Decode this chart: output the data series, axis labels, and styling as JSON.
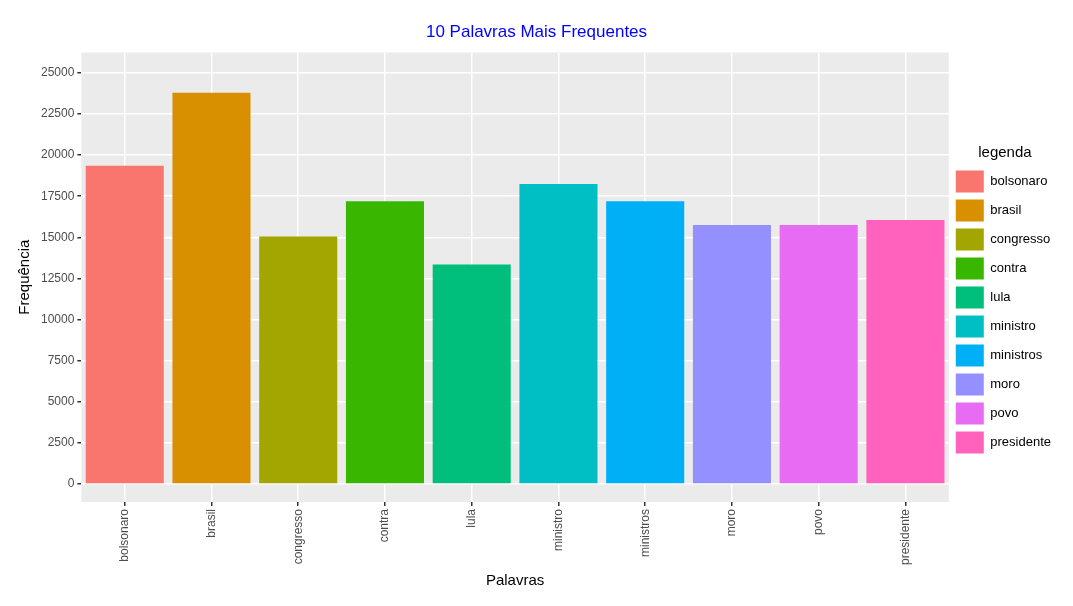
{
  "chart_data": {
    "type": "bar",
    "title": "10 Palavras Mais Frequentes",
    "xlabel": "Palavras",
    "ylabel": "Frequência",
    "legend_title": "legenda",
    "categories": [
      "bolsonaro",
      "brasil",
      "congresso",
      "contra",
      "lula",
      "ministro",
      "ministros",
      "moro",
      "povo",
      "presidente"
    ],
    "series": [
      {
        "name": "bolsonaro",
        "color": "#f8766d",
        "values": [
          19350,
          null,
          null,
          null,
          null,
          null,
          null,
          null,
          null,
          null
        ]
      },
      {
        "name": "brasil",
        "color": "#d89000",
        "values": [
          null,
          23800,
          null,
          null,
          null,
          null,
          null,
          null,
          null,
          null
        ]
      },
      {
        "name": "congresso",
        "color": "#a3a500",
        "values": [
          null,
          null,
          15050,
          null,
          null,
          null,
          null,
          null,
          null,
          null
        ]
      },
      {
        "name": "contra",
        "color": "#39b600",
        "values": [
          null,
          null,
          null,
          17200,
          null,
          null,
          null,
          null,
          null,
          null
        ]
      },
      {
        "name": "lula",
        "color": "#00bf7d",
        "values": [
          null,
          null,
          null,
          null,
          13350,
          null,
          null,
          null,
          null,
          null
        ]
      },
      {
        "name": "ministro",
        "color": "#00bfc4",
        "values": [
          null,
          null,
          null,
          null,
          null,
          18250,
          null,
          null,
          null,
          null
        ]
      },
      {
        "name": "ministros",
        "color": "#00b0f6",
        "values": [
          null,
          null,
          null,
          null,
          null,
          null,
          17200,
          null,
          null,
          null
        ]
      },
      {
        "name": "moro",
        "color": "#9590ff",
        "values": [
          null,
          null,
          null,
          null,
          null,
          null,
          null,
          15750,
          null,
          null
        ]
      },
      {
        "name": "povo",
        "color": "#e76bf3",
        "values": [
          null,
          null,
          null,
          null,
          null,
          null,
          null,
          null,
          15750,
          null
        ]
      },
      {
        "name": "presidente",
        "color": "#ff62bc",
        "values": [
          null,
          null,
          null,
          null,
          null,
          null,
          null,
          null,
          null,
          16050
        ]
      }
    ],
    "ylim": [
      -1100,
      26250
    ],
    "yticks": [
      0,
      2500,
      5000,
      7500,
      10000,
      12500,
      15000,
      17500,
      20000,
      22500,
      25000
    ],
    "grid": true,
    "legend": "right"
  }
}
